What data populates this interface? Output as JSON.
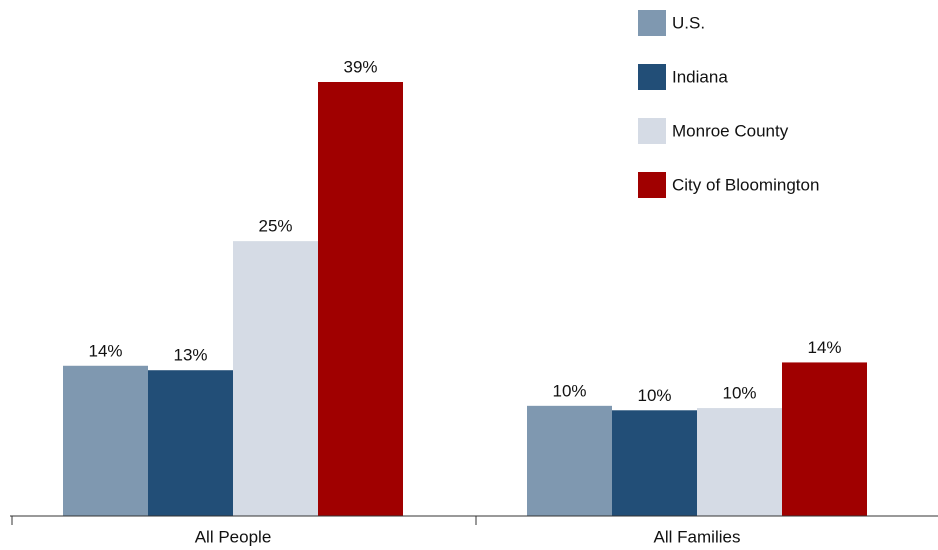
{
  "chart_data": {
    "type": "bar",
    "categories": [
      "All People",
      "All Families"
    ],
    "series": [
      {
        "name": "U.S.",
        "color": "#7f98b0",
        "values": [
          13.5,
          9.9
        ],
        "value_labels": [
          "14%",
          "10%"
        ]
      },
      {
        "name": "Indiana",
        "color": "#224e77",
        "values": [
          13.1,
          9.5
        ],
        "value_labels": [
          "13%",
          "10%"
        ]
      },
      {
        "name": "Monroe County",
        "color": "#d5dbe5",
        "values": [
          24.7,
          9.7
        ],
        "value_labels": [
          "25%",
          "10%"
        ]
      },
      {
        "name": "City of Bloomington",
        "color": "#a00000",
        "values": [
          39,
          13.8
        ],
        "value_labels": [
          "39%",
          "14%"
        ]
      }
    ]
  }
}
